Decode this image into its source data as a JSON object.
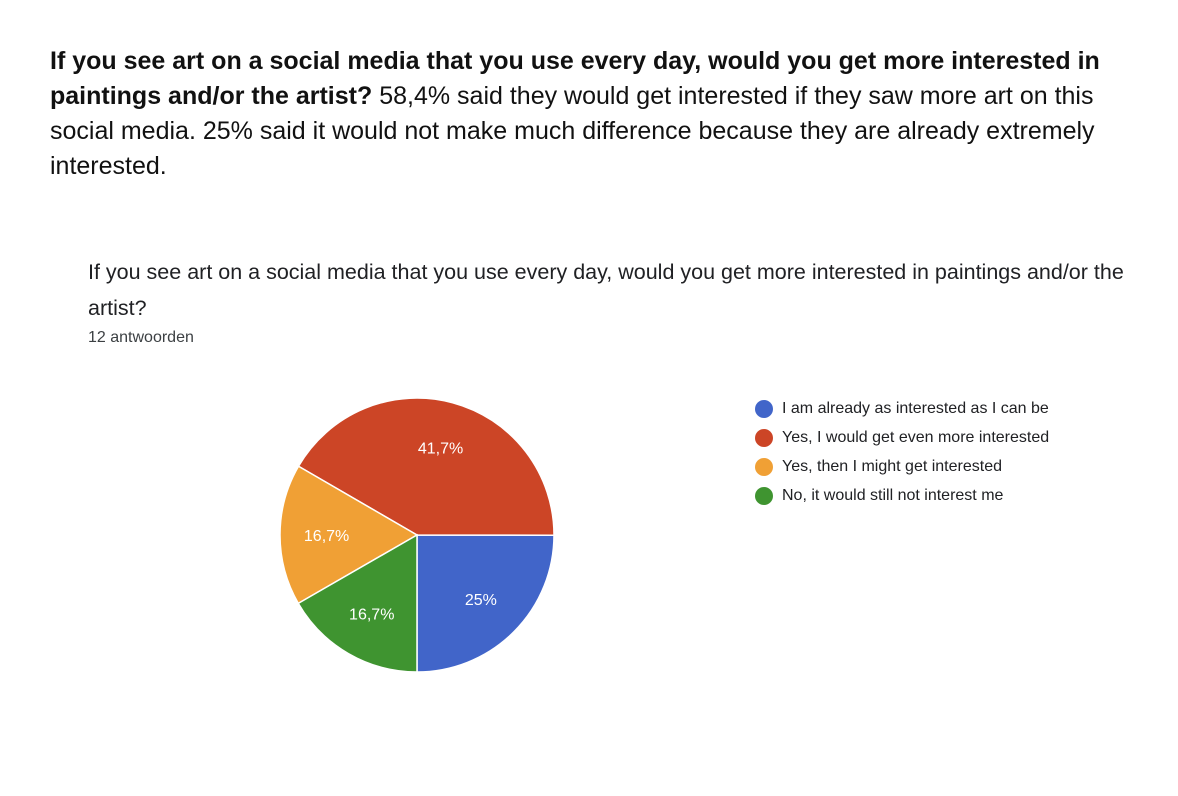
{
  "intro": {
    "question": "If you see art on a social media that you use every day, would you get more interested in paintings and/or the artist?",
    "summary": "58,4% said they would get interested if they saw more art on this social media. 25% said it would not make much difference because they are already extremely interested."
  },
  "chart_data": {
    "type": "pie",
    "title": "If you see art on a social media that you use every day, would you get more interested in paintings and/or the artist?",
    "subtitle": "12 antwoorden",
    "slices": [
      {
        "label": "I am already as interested as I can be",
        "value": 25,
        "display": "25%",
        "color": "#4165c9"
      },
      {
        "label": "Yes, I would get even more interested",
        "value": 41.7,
        "display": "41,7%",
        "color": "#cc4526"
      },
      {
        "label": "Yes, then I might get interested",
        "value": 16.7,
        "display": "16,7%",
        "color": "#f0a035"
      },
      {
        "label": "No, it would still not interest me",
        "value": 16.7,
        "display": "16,7%",
        "color": "#3f9430"
      }
    ],
    "start_angle_deg": 90,
    "direction": "clockwise",
    "legend_position": "right"
  }
}
